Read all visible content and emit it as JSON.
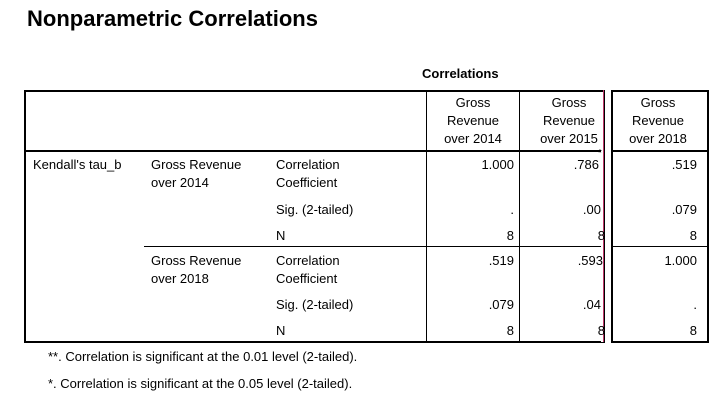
{
  "title": "Nonparametric Correlations",
  "table": {
    "caption": "Correlations",
    "columns": [
      {
        "line1": "Gross",
        "line2": "Revenue",
        "line3": "over 2014"
      },
      {
        "line1": "Gross",
        "line2": "Revenue",
        "line3": "over 2015"
      },
      {
        "line1": "Gross",
        "line2": "Revenue",
        "line3": "over 2018"
      }
    ],
    "method": "Kendall's tau_b",
    "groups": [
      {
        "var_line1": "Gross Revenue",
        "var_line2": "over 2014",
        "rows": [
          {
            "stat_line1": "Correlation",
            "stat_line2": "Coefficient",
            "values": [
              "1.000",
              ".786",
              ".519"
            ]
          },
          {
            "stat_line1": "Sig. (2-tailed)",
            "values": [
              ".",
              ".00",
              ".079"
            ]
          },
          {
            "stat_line1": "N",
            "values": [
              "8",
              "8",
              "8"
            ]
          }
        ]
      },
      {
        "var_line1": "Gross Revenue",
        "var_line2": "over 2018",
        "rows": [
          {
            "stat_line1": "Correlation",
            "stat_line2": "Coefficient",
            "values": [
              ".519",
              ".593",
              "1.000"
            ]
          },
          {
            "stat_line1": "Sig. (2-tailed)",
            "values": [
              ".079",
              ".04",
              "."
            ]
          },
          {
            "stat_line1": "N",
            "values": [
              "8",
              "8",
              "8"
            ]
          }
        ]
      }
    ],
    "sig_marker": "*"
  },
  "footnotes": [
    "**. Correlation is significant at the 0.01 level (2-tailed).",
    "*. Correlation is significant at the 0.05 level (2-tailed)."
  ]
}
